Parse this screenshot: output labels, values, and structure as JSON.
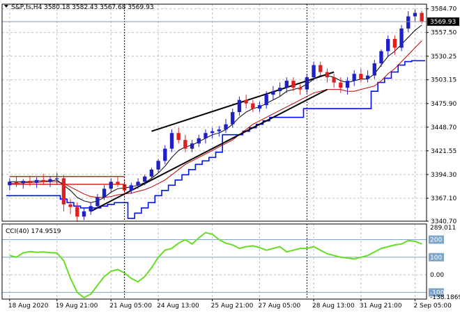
{
  "header": {
    "symbol_line": "S&P,fs,H4  3580.18 3582.43 3567.68 3569.93"
  },
  "cci_header": "CCI(40) 174.9519",
  "colors": {
    "bull": "#1f1fc8",
    "bear": "#e02020",
    "ma_fast": "#000000",
    "ma_slow": "#c00000",
    "envelope": "#0010ff",
    "cci_line": "#66dd22",
    "trend": "#000000",
    "level_lines": "#7fa6c8"
  },
  "chart_data": [
    {
      "type": "candlestick",
      "ylim": [
        3340.7,
        3590
      ],
      "y_ticks": [
        "3584.70",
        "3557.50",
        "3530.25",
        "3503.15",
        "3475.90",
        "3448.70",
        "3421.55",
        "3394.30",
        "3367.10",
        "3340.70"
      ],
      "current_price": "3569.93",
      "x_labels": [
        "18 Aug 2020",
        "19 Aug 21:00",
        "21 Aug 05:00",
        "24 Aug 13:00",
        "25 Aug 21:00",
        "27 Aug 05:00",
        "28 Aug 13:00",
        "31 Aug 21:00",
        "2 Sep 05:00"
      ],
      "candles": [
        [
          3382,
          3390,
          3376,
          3386
        ],
        [
          3386,
          3392,
          3380,
          3384
        ],
        [
          3384,
          3389,
          3378,
          3387
        ],
        [
          3387,
          3393,
          3381,
          3385
        ],
        [
          3385,
          3391,
          3379,
          3388
        ],
        [
          3388,
          3395,
          3382,
          3386
        ],
        [
          3386,
          3392,
          3380,
          3389
        ],
        [
          3389,
          3396,
          3383,
          3390
        ],
        [
          3390,
          3394,
          3352,
          3360
        ],
        [
          3360,
          3366,
          3349,
          3357
        ],
        [
          3357,
          3362,
          3340,
          3346
        ],
        [
          3346,
          3356,
          3342,
          3352
        ],
        [
          3352,
          3362,
          3348,
          3358
        ],
        [
          3358,
          3372,
          3355,
          3368
        ],
        [
          3368,
          3382,
          3365,
          3378
        ],
        [
          3378,
          3390,
          3374,
          3386
        ],
        [
          3386,
          3392,
          3380,
          3383
        ],
        [
          3383,
          3389,
          3370,
          3376
        ],
        [
          3376,
          3385,
          3372,
          3382
        ],
        [
          3382,
          3390,
          3378,
          3386
        ],
        [
          3386,
          3394,
          3382,
          3392
        ],
        [
          3392,
          3402,
          3388,
          3400
        ],
        [
          3400,
          3412,
          3396,
          3410
        ],
        [
          3410,
          3428,
          3406,
          3424
        ],
        [
          3424,
          3446,
          3420,
          3442
        ],
        [
          3442,
          3448,
          3430,
          3434
        ],
        [
          3434,
          3440,
          3420,
          3424
        ],
        [
          3424,
          3434,
          3420,
          3430
        ],
        [
          3430,
          3440,
          3426,
          3436
        ],
        [
          3436,
          3446,
          3430,
          3442
        ],
        [
          3442,
          3448,
          3436,
          3444
        ],
        [
          3444,
          3450,
          3438,
          3446
        ],
        [
          3446,
          3458,
          3442,
          3452
        ],
        [
          3452,
          3470,
          3448,
          3466
        ],
        [
          3466,
          3484,
          3462,
          3480
        ],
        [
          3480,
          3486,
          3470,
          3476
        ],
        [
          3476,
          3480,
          3466,
          3470
        ],
        [
          3470,
          3478,
          3466,
          3474
        ],
        [
          3474,
          3490,
          3470,
          3486
        ],
        [
          3486,
          3496,
          3480,
          3490
        ],
        [
          3490,
          3500,
          3484,
          3494
        ],
        [
          3494,
          3506,
          3488,
          3502
        ],
        [
          3502,
          3506,
          3490,
          3494
        ],
        [
          3494,
          3498,
          3486,
          3492
        ],
        [
          3492,
          3510,
          3488,
          3506
        ],
        [
          3506,
          3524,
          3502,
          3520
        ],
        [
          3520,
          3524,
          3508,
          3512
        ],
        [
          3512,
          3516,
          3500,
          3506
        ],
        [
          3506,
          3510,
          3494,
          3500
        ],
        [
          3500,
          3506,
          3488,
          3494
        ],
        [
          3494,
          3506,
          3486,
          3502
        ],
        [
          3502,
          3514,
          3496,
          3510
        ],
        [
          3510,
          3516,
          3500,
          3504
        ],
        [
          3504,
          3514,
          3500,
          3508
        ],
        [
          3508,
          3526,
          3504,
          3522
        ],
        [
          3522,
          3538,
          3518,
          3536
        ],
        [
          3536,
          3554,
          3530,
          3550
        ],
        [
          3550,
          3554,
          3532,
          3540
        ],
        [
          3540,
          3566,
          3536,
          3562
        ],
        [
          3562,
          3582,
          3558,
          3576
        ],
        [
          3576,
          3584,
          3570,
          3580
        ],
        [
          3580,
          3582.43,
          3567.68,
          3569.93
        ]
      ],
      "ma_fast": [
        3386,
        3386,
        3386,
        3386,
        3387,
        3387,
        3387,
        3388,
        3382,
        3376,
        3368,
        3364,
        3362,
        3364,
        3368,
        3374,
        3378,
        3379,
        3380,
        3382,
        3385,
        3390,
        3396,
        3404,
        3414,
        3422,
        3426,
        3428,
        3432,
        3436,
        3440,
        3442,
        3446,
        3452,
        3460,
        3466,
        3470,
        3472,
        3476,
        3480,
        3484,
        3490,
        3492,
        3494,
        3498,
        3504,
        3508,
        3508,
        3506,
        3502,
        3500,
        3502,
        3504,
        3504,
        3510,
        3520,
        3530,
        3536,
        3544,
        3552,
        3560,
        3566
      ],
      "ma_slow": [
        3384,
        3384,
        3385,
        3385,
        3385,
        3386,
        3386,
        3386,
        3384,
        3380,
        3376,
        3372,
        3369,
        3368,
        3368,
        3369,
        3371,
        3372,
        3373,
        3375,
        3377,
        3380,
        3384,
        3388,
        3394,
        3400,
        3406,
        3410,
        3414,
        3418,
        3422,
        3426,
        3430,
        3434,
        3440,
        3446,
        3452,
        3456,
        3460,
        3464,
        3468,
        3472,
        3476,
        3480,
        3484,
        3488,
        3490,
        3492,
        3492,
        3492,
        3490,
        3490,
        3492,
        3494,
        3496,
        3502,
        3510,
        3516,
        3524,
        3532,
        3540,
        3548
      ],
      "envelope": [
        3370,
        3370,
        3370,
        3370,
        3370,
        3370,
        3370,
        3370,
        3366,
        3362,
        3358,
        3356,
        3356,
        3356,
        3358,
        3360,
        3362,
        3362,
        3344,
        3350,
        3356,
        3362,
        3370,
        3376,
        3382,
        3388,
        3394,
        3400,
        3406,
        3410,
        3414,
        3420,
        3440,
        3440,
        3440,
        3444,
        3448,
        3452,
        3456,
        3460,
        3460,
        3460,
        3460,
        3460,
        3470,
        3470,
        3470,
        3470,
        3470,
        3470,
        3470,
        3470,
        3470,
        3470,
        3490,
        3500,
        3505,
        3512,
        3520,
        3524,
        3525,
        3525
      ],
      "level_lines": [
        {
          "from_index": 0,
          "to_index": 17,
          "value": 3383
        },
        {
          "from_index": 0,
          "to_index": 17,
          "value": 3392
        }
      ],
      "trendlines": [
        {
          "from_index": 21,
          "from_value": 3444,
          "to_index": 48,
          "to_value": 3512
        },
        {
          "from_index": 12,
          "from_value": 3352,
          "to_index": 47,
          "to_value": 3492
        }
      ],
      "vlines_at_index": [
        17,
        44
      ]
    },
    {
      "type": "line",
      "title": "CCI(40) 174.9519",
      "ylim": [
        -138.1869,
        289.011
      ],
      "y_ticks": [
        "289.011",
        "200",
        "100",
        "0.00",
        "-100",
        "-138.1869"
      ],
      "levels": [
        200,
        100,
        -100
      ],
      "values": [
        110,
        100,
        125,
        132,
        128,
        130,
        126,
        124,
        80,
        -20,
        -100,
        -130,
        -110,
        -60,
        -10,
        20,
        30,
        10,
        -20,
        -40,
        -10,
        40,
        100,
        140,
        150,
        180,
        200,
        175,
        210,
        240,
        230,
        200,
        180,
        170,
        150,
        160,
        165,
        155,
        140,
        150,
        160,
        130,
        140,
        150,
        150,
        160,
        140,
        120,
        110,
        100,
        95,
        90,
        100,
        110,
        130,
        150,
        160,
        170,
        175,
        195,
        190,
        174.9519
      ]
    }
  ]
}
